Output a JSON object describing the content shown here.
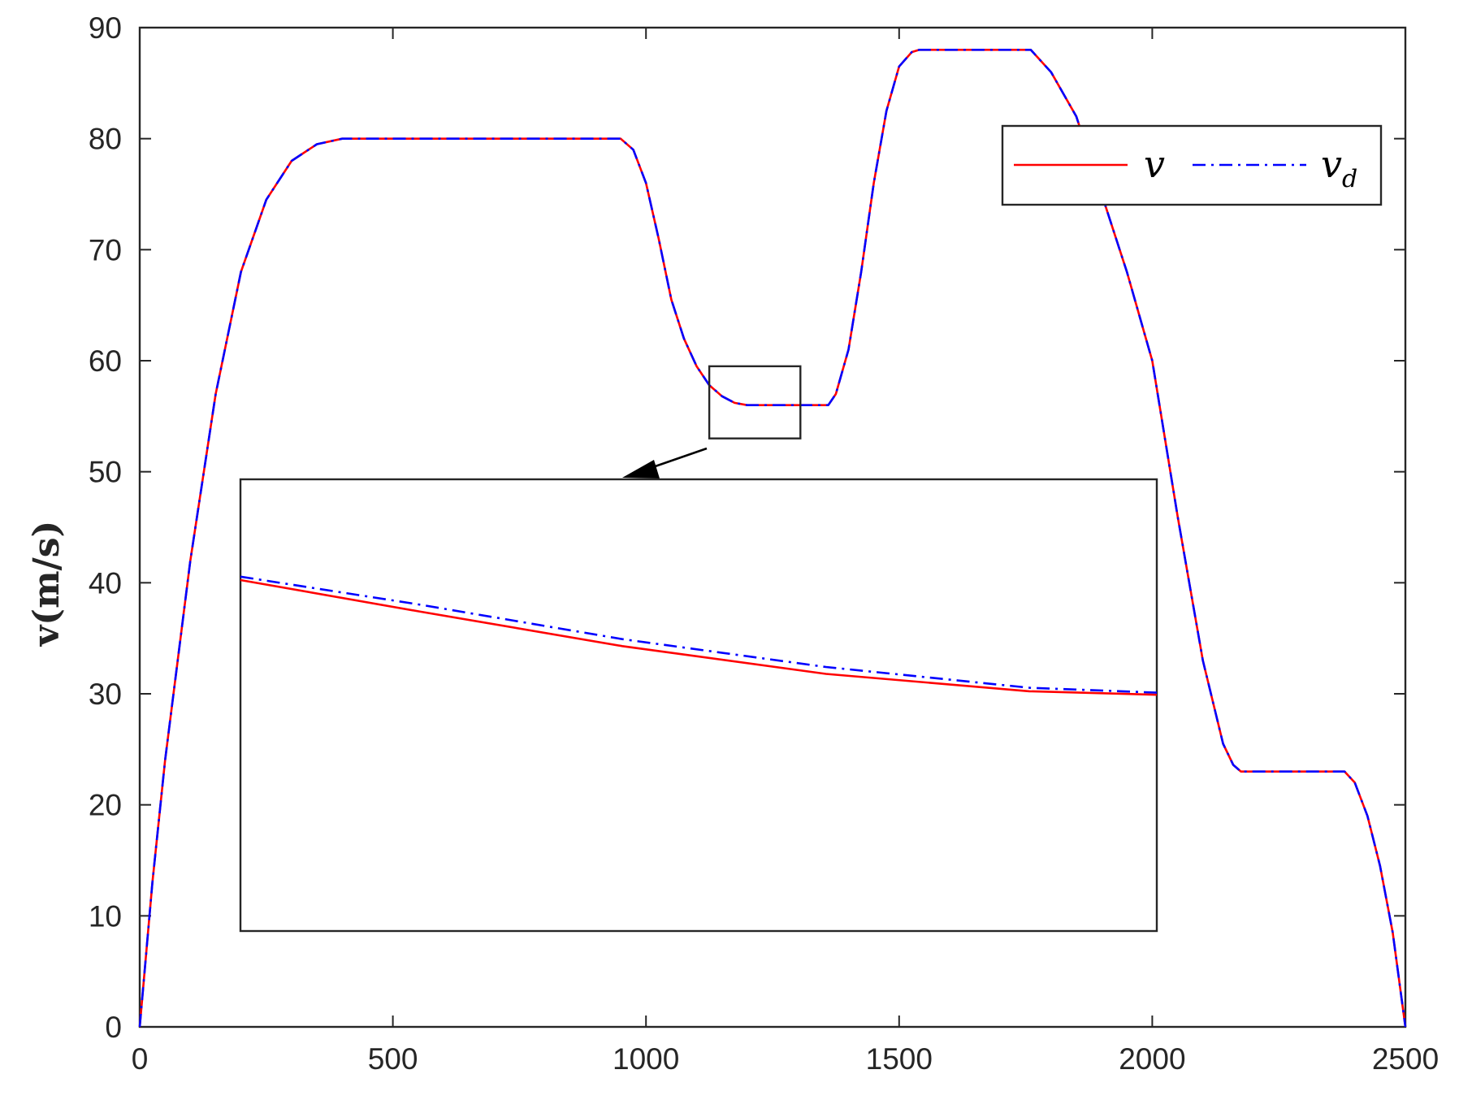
{
  "chart_data": {
    "type": "line",
    "title": "",
    "xlabel": "",
    "ylabel": "v(m/s)",
    "xlim": [
      0,
      2500
    ],
    "ylim": [
      0,
      90
    ],
    "xticks": [
      0,
      500,
      1000,
      1500,
      2000,
      2500
    ],
    "yticks": [
      0,
      10,
      20,
      30,
      40,
      50,
      60,
      70,
      80,
      90
    ],
    "xtick_labels": [
      "0",
      "500",
      "1000",
      "1500",
      "2000",
      "2500"
    ],
    "ytick_labels": [
      "0",
      "10",
      "20",
      "30",
      "40",
      "50",
      "60",
      "70",
      "80",
      "90"
    ],
    "grid": false,
    "legend_position": "top-right",
    "series": [
      {
        "name": "v",
        "color": "#ff0000",
        "style": "solid",
        "x": [
          0,
          25,
          50,
          100,
          150,
          200,
          250,
          300,
          350,
          400,
          950,
          975,
          1000,
          1025,
          1050,
          1075,
          1100,
          1125,
          1150,
          1175,
          1200,
          1360,
          1375,
          1400,
          1425,
          1450,
          1475,
          1500,
          1525,
          1540,
          1760,
          1800,
          1850,
          1900,
          1950,
          2000,
          2050,
          2100,
          2140,
          2160,
          2175,
          2380,
          2400,
          2425,
          2450,
          2475,
          2500
        ],
        "y": [
          0,
          13,
          24,
          42,
          57,
          68,
          74.5,
          78,
          79.5,
          80,
          80,
          79,
          76,
          71,
          65.5,
          62,
          59.5,
          57.8,
          56.8,
          56.2,
          56,
          56,
          57,
          61,
          68,
          76,
          82.5,
          86.5,
          87.8,
          88,
          88,
          86,
          82,
          75,
          68,
          60,
          46,
          33,
          25.5,
          23.6,
          23,
          23,
          22,
          19,
          14.5,
          8.5,
          0
        ]
      },
      {
        "name": "v_d",
        "color": "#0000ff",
        "style": "dash-dot",
        "x": [
          0,
          25,
          50,
          100,
          150,
          200,
          250,
          300,
          350,
          400,
          950,
          975,
          1000,
          1025,
          1050,
          1075,
          1100,
          1125,
          1150,
          1175,
          1200,
          1360,
          1375,
          1400,
          1425,
          1450,
          1475,
          1500,
          1525,
          1540,
          1760,
          1800,
          1850,
          1900,
          1950,
          2000,
          2050,
          2100,
          2140,
          2160,
          2175,
          2380,
          2400,
          2425,
          2450,
          2475,
          2500
        ],
        "y": [
          0,
          13,
          24,
          42,
          57,
          68,
          74.5,
          78,
          79.5,
          80,
          80,
          79,
          76,
          71,
          65.5,
          62,
          59.5,
          57.8,
          56.8,
          56.2,
          56,
          56,
          57,
          61,
          68,
          76,
          82.5,
          86.5,
          87.8,
          88,
          88,
          86,
          82,
          75,
          68,
          60,
          46,
          33,
          25.5,
          23.6,
          23,
          23,
          22,
          19,
          14.5,
          8.5,
          0
        ]
      }
    ],
    "inset": {
      "source_region": {
        "x": [
          1125,
          1305
        ],
        "y": [
          53,
          59.5
        ]
      },
      "x": [
        1125,
        1160,
        1200,
        1240,
        1280,
        1305
      ],
      "series": [
        {
          "name": "v",
          "y": [
            58.05,
            57.6,
            57.1,
            56.7,
            56.45,
            56.4
          ]
        },
        {
          "name": "v_d",
          "y": [
            58.1,
            57.7,
            57.2,
            56.8,
            56.5,
            56.43
          ]
        }
      ]
    }
  }
}
